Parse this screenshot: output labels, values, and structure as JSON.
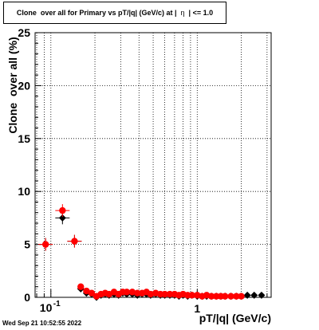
{
  "title_parts": [
    "Clone  over all for Primary vs pT/|q| (GeV/c) at |  ",
    "η",
    "  | <= 1.0"
  ],
  "timestamp": "Wed Sep 21 10:52:55 2022",
  "chart_data": {
    "type": "scatter",
    "xlabel": "pT/|q| (GeV/c)",
    "ylabel": "Clone  over all (%)",
    "xscale": "log",
    "xlim": [
      0.078,
      3.2
    ],
    "ylim": [
      0,
      25
    ],
    "grid": true,
    "x_tick_labels": [
      "10",
      "-1",
      "1"
    ],
    "y_tick_labels": [
      "0",
      "5",
      "10",
      "15",
      "20",
      "25"
    ],
    "series": [
      {
        "color": "#000000",
        "marker": "diamond",
        "x": [
          0.092,
          0.12,
          0.145,
          0.16,
          0.175,
          0.19,
          0.205,
          0.22,
          0.235,
          0.25,
          0.27,
          0.29,
          0.31,
          0.33,
          0.36,
          0.39,
          0.42,
          0.45,
          0.48,
          0.52,
          0.56,
          0.6,
          0.65,
          0.7,
          0.75,
          0.8,
          0.86,
          0.92,
          1.0,
          1.08,
          1.16,
          1.25,
          1.35,
          1.45,
          1.55,
          1.7,
          1.85,
          2.0,
          2.2,
          2.45,
          2.75
        ],
        "y": [
          5.0,
          7.5,
          5.3,
          0.8,
          0.4,
          0.3,
          0.0,
          0.2,
          0.3,
          0.2,
          0.3,
          0.2,
          0.4,
          0.3,
          0.3,
          0.2,
          0.3,
          0.3,
          0.2,
          0.3,
          0.2,
          0.2,
          0.2,
          0.2,
          0.1,
          0.2,
          0.1,
          0.2,
          0.1,
          0.1,
          0.1,
          0.1,
          0.1,
          0.1,
          0.1,
          0.1,
          0.1,
          0.1,
          0.2,
          0.2,
          0.2
        ],
        "yerr": [
          0.6,
          0.6,
          0.6,
          0.2,
          0.2,
          0.2,
          0.1,
          0.2,
          0.2,
          0.2,
          0.2,
          0.2,
          0.2,
          0.2,
          0.2,
          0.2,
          0.2,
          0.2,
          0.2,
          0.2,
          0.2,
          0.2,
          0.2,
          0.2,
          0.1,
          0.1,
          0.1,
          0.1,
          0.1,
          0.1,
          0.1,
          0.1,
          0.1,
          0.1,
          0.1,
          0.1,
          0.1,
          0.1,
          0.1,
          0.1,
          0.1
        ]
      },
      {
        "color": "#ff0000",
        "marker": "circle",
        "x": [
          0.092,
          0.12,
          0.145,
          0.16,
          0.175,
          0.19,
          0.205,
          0.22,
          0.235,
          0.25,
          0.27,
          0.29,
          0.31,
          0.33,
          0.36,
          0.39,
          0.42,
          0.45,
          0.48,
          0.52,
          0.56,
          0.6,
          0.65,
          0.7,
          0.75,
          0.8,
          0.86,
          0.92,
          1.0,
          1.08,
          1.16,
          1.25,
          1.35,
          1.45,
          1.55,
          1.7,
          1.85,
          2.0
        ],
        "y": [
          5.0,
          8.2,
          5.3,
          1.0,
          0.6,
          0.4,
          0.1,
          0.3,
          0.4,
          0.3,
          0.5,
          0.3,
          0.5,
          0.5,
          0.5,
          0.4,
          0.4,
          0.5,
          0.3,
          0.4,
          0.3,
          0.3,
          0.3,
          0.3,
          0.2,
          0.3,
          0.2,
          0.2,
          0.2,
          0.1,
          0.2,
          0.1,
          0.1,
          0.1,
          0.1,
          0.1,
          0.1,
          0.1
        ],
        "yerr": [
          0.6,
          0.6,
          0.6,
          0.2,
          0.2,
          0.2,
          0.1,
          0.2,
          0.2,
          0.2,
          0.2,
          0.2,
          0.2,
          0.2,
          0.2,
          0.2,
          0.2,
          0.2,
          0.2,
          0.2,
          0.2,
          0.2,
          0.2,
          0.2,
          0.1,
          0.1,
          0.1,
          0.1,
          0.1,
          0.1,
          0.1,
          0.1,
          0.1,
          0.1,
          0.1,
          0.1,
          0.1,
          0.1
        ]
      }
    ]
  }
}
